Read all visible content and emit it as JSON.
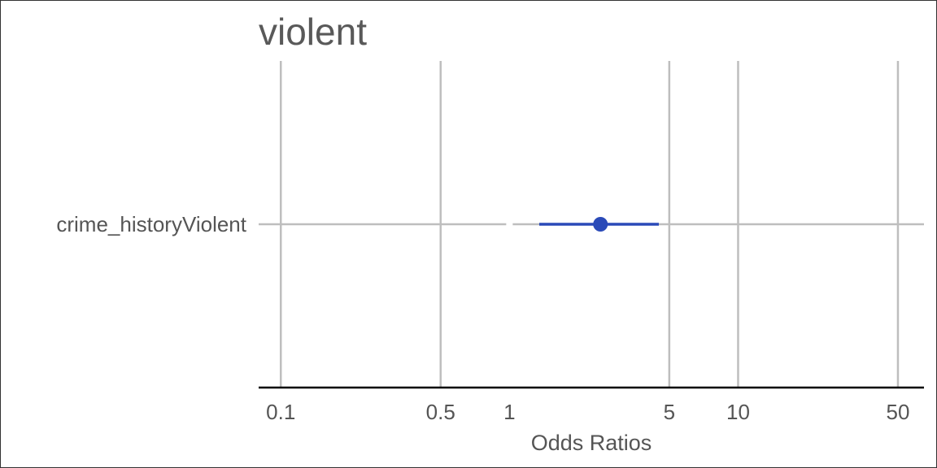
{
  "chart_data": {
    "type": "forest",
    "title": "violent",
    "xlabel": "Odds Ratios",
    "ylabel": "",
    "x_scale": "log10",
    "xlim": [
      0.08,
      65
    ],
    "x_ticks": [
      0.1,
      0.5,
      1,
      5,
      10,
      50
    ],
    "x_tick_labels": [
      "0.1",
      "0.5",
      "1",
      "5",
      "10",
      "50"
    ],
    "reference_line": 1,
    "grid": true,
    "terms": [
      {
        "label": "crime_historyViolent",
        "estimate": 2.5,
        "ci_low": 1.35,
        "ci_high": 4.5
      }
    ],
    "colors": {
      "point": "#2a4ab8",
      "grid": "#bebebe",
      "axis": "#000000",
      "text": "#555555",
      "title": "#595959"
    }
  }
}
